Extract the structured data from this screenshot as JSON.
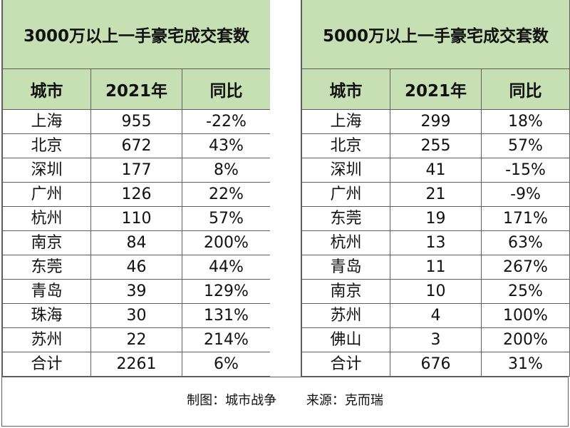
{
  "left": {
    "title": "3000万以上一手豪宅成交套数",
    "headers": [
      "城市",
      "2021年",
      "同比"
    ],
    "rows": [
      [
        "上海",
        "955",
        "-22%"
      ],
      [
        "北京",
        "672",
        "43%"
      ],
      [
        "深圳",
        "177",
        "8%"
      ],
      [
        "广州",
        "126",
        "22%"
      ],
      [
        "杭州",
        "110",
        "57%"
      ],
      [
        "南京",
        "84",
        "200%"
      ],
      [
        "东莞",
        "46",
        "44%"
      ],
      [
        "青岛",
        "39",
        "129%"
      ],
      [
        "珠海",
        "30",
        "131%"
      ],
      [
        "苏州",
        "22",
        "214%"
      ],
      [
        "合计",
        "2261",
        "6%"
      ]
    ]
  },
  "right": {
    "title": "5000万以上一手豪宅成交套数",
    "headers": [
      "城市",
      "2021年",
      "同比"
    ],
    "rows": [
      [
        "上海",
        "299",
        "18%"
      ],
      [
        "北京",
        "255",
        "57%"
      ],
      [
        "深圳",
        "41",
        "-15%"
      ],
      [
        "广州",
        "21",
        "-9%"
      ],
      [
        "东莞",
        "19",
        "171%"
      ],
      [
        "杭州",
        "13",
        "63%"
      ],
      [
        "青岛",
        "11",
        "267%"
      ],
      [
        "南京",
        "10",
        "25%"
      ],
      [
        "苏州",
        "4",
        "100%"
      ],
      [
        "佛山",
        "3",
        "200%"
      ],
      [
        "合计",
        "676",
        "31%"
      ]
    ]
  },
  "footer": {
    "credit": "制图：城市战争",
    "source": "来源：克而瑞"
  },
  "colors": {
    "header_fill": "#c6e0b4",
    "border": "#5f5f5f"
  }
}
